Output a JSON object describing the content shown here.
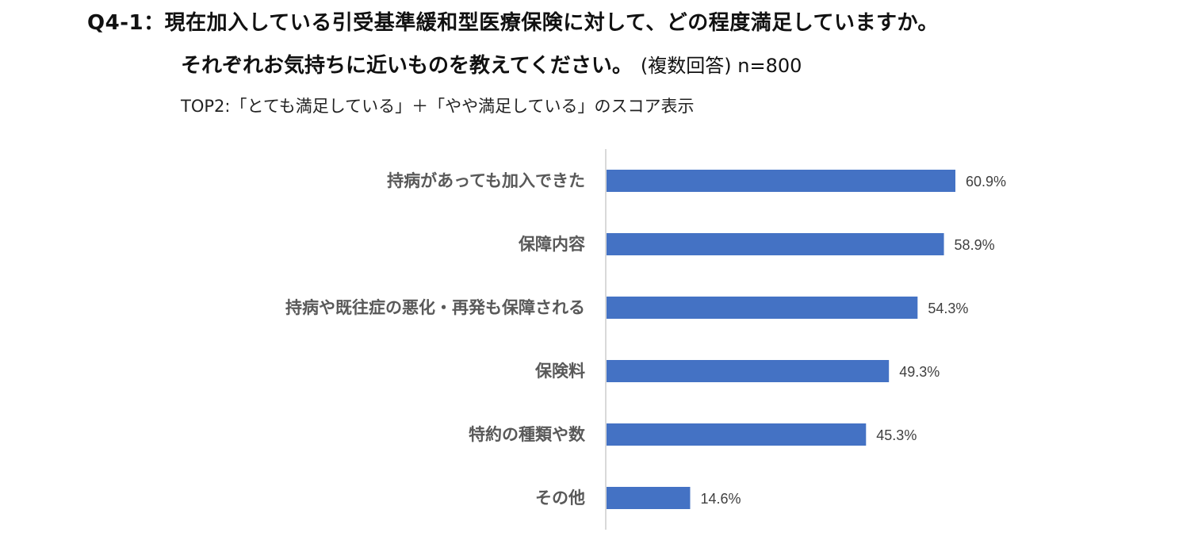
{
  "header": {
    "question_id": "Q4-1：",
    "question_text": "現在加入している引受基準緩和型医療保険に対して、どの程度満足していますか。",
    "question_text_2": "それぞれお気持ちに近いものを教えてください。",
    "question_note": "(複数回答) n=800",
    "subtitle": "TOP2:「とても満足している」＋「やや満足している」のスコア表示"
  },
  "chart_data": {
    "type": "bar",
    "orientation": "horizontal",
    "categories": [
      "持病があっても加入できた",
      "保障内容",
      "持病や既往症の悪化・再発も保障される",
      "保険料",
      "特約の種類や数",
      "その他"
    ],
    "values": [
      60.9,
      58.9,
      54.3,
      49.3,
      45.3,
      14.6
    ],
    "value_labels": [
      "60.9%",
      "58.9%",
      "54.3%",
      "49.3%",
      "45.3%",
      "14.6%"
    ],
    "unit": "%",
    "bar_color": "#4472C4",
    "axis_color": "#D9D9D9",
    "xlim": [
      0,
      100
    ],
    "grid": false,
    "legend": "none"
  }
}
